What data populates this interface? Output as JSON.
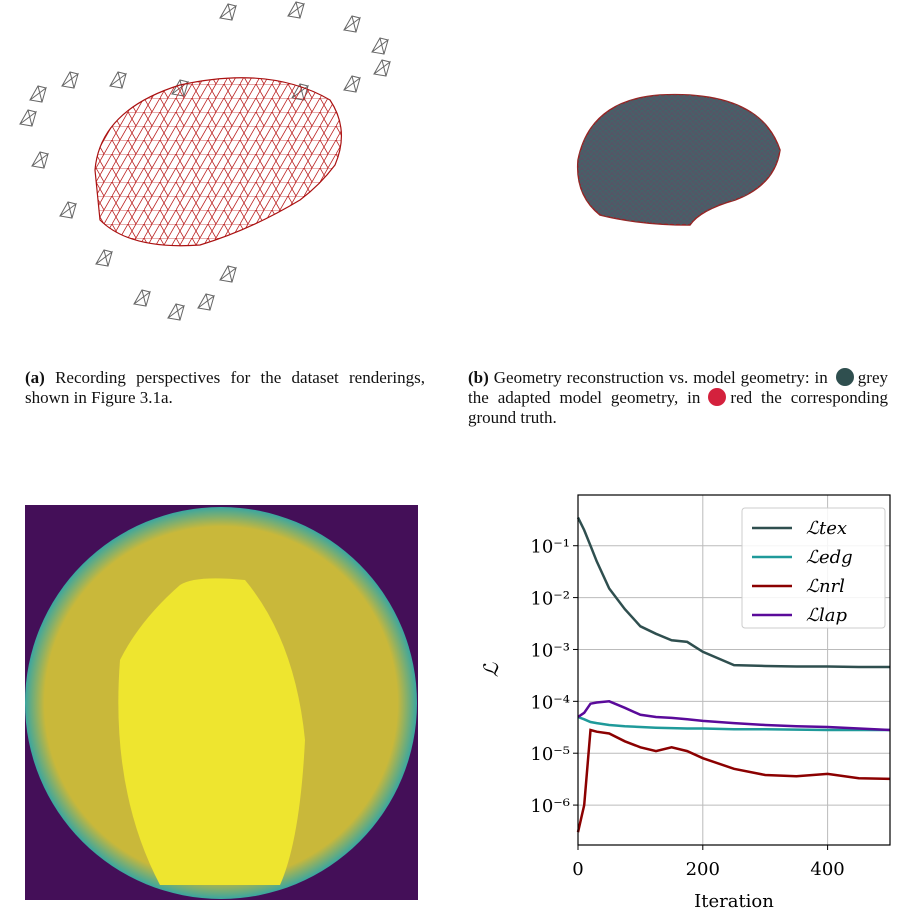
{
  "captions": {
    "a": {
      "label": "(a)",
      "text": "Recording perspectives for the dataset renderings, shown in Figure 3.1a."
    },
    "b": {
      "label": "(b)",
      "text1": "Geometry reconstruction vs. model geometry: in",
      "text2": "grey the adapted model geometry, in",
      "text3": "red the corresponding ground truth."
    }
  },
  "chart_data": {
    "type": "line",
    "x_label": "Iteration",
    "y_label": "ℒ",
    "log_y": true,
    "grid": true,
    "legend": "upper right",
    "x": [
      0,
      10,
      20,
      30,
      50,
      75,
      100,
      125,
      150,
      175,
      200,
      250,
      300,
      350,
      400,
      450,
      500
    ],
    "xlim": [
      0,
      500
    ],
    "xticks": [
      0,
      200,
      400
    ],
    "ylim": [
      1.7e-07,
      0.95
    ],
    "yticks": [
      {
        "value": 0.1,
        "label": "10⁻¹"
      },
      {
        "value": 0.01,
        "label": "10⁻²"
      },
      {
        "value": 0.001,
        "label": "10⁻³"
      },
      {
        "value": 0.0001,
        "label": "10⁻⁴"
      },
      {
        "value": 1e-05,
        "label": "10⁻⁵"
      },
      {
        "value": 1e-06,
        "label": "10⁻⁶"
      }
    ],
    "series": [
      {
        "name": "ℒtex",
        "color": "#2f4f4f",
        "values": [
          0.35,
          0.2,
          0.1,
          0.05,
          0.015,
          0.006,
          0.0028,
          0.002,
          0.0015,
          0.0014,
          0.0009,
          0.0005,
          0.00048,
          0.00047,
          0.00047,
          0.00046,
          0.00046
        ]
      },
      {
        "name": "ℒedg",
        "color": "#1f9a9a",
        "values": [
          5e-05,
          4.5e-05,
          4e-05,
          3.8e-05,
          3.5e-05,
          3.3e-05,
          3.2e-05,
          3.1e-05,
          3.05e-05,
          3e-05,
          3e-05,
          2.9e-05,
          2.9e-05,
          2.85e-05,
          2.8e-05,
          2.8e-05,
          2.8e-05
        ]
      },
      {
        "name": "ℒnrl",
        "color": "#8b0000",
        "values": [
          3e-07,
          1e-06,
          2.8e-05,
          2.6e-05,
          2.4e-05,
          1.7e-05,
          1.3e-05,
          1.1e-05,
          1.3e-05,
          1.1e-05,
          8e-06,
          5e-06,
          3.8e-06,
          3.6e-06,
          4e-06,
          3.3e-06,
          3.2e-06
        ]
      },
      {
        "name": "ℒlap",
        "color": "#5a0a9a",
        "values": [
          5e-05,
          6e-05,
          9e-05,
          9.5e-05,
          0.0001,
          7.5e-05,
          5.5e-05,
          5e-05,
          4.8e-05,
          4.5e-05,
          4.2e-05,
          3.8e-05,
          3.5e-05,
          3.3e-05,
          3.2e-05,
          3e-05,
          2.8e-05
        ]
      }
    ]
  }
}
